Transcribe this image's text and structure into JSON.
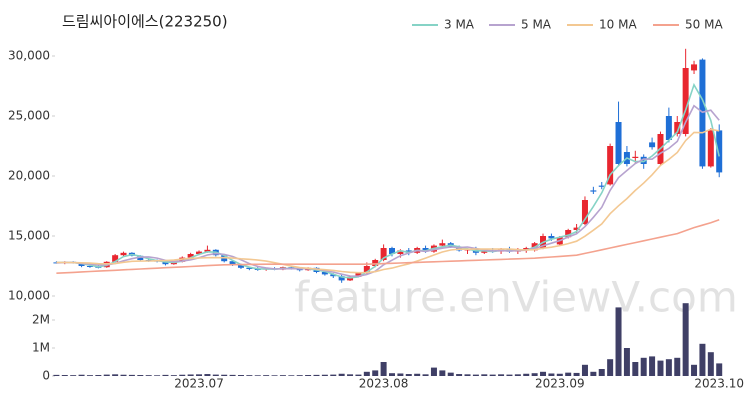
{
  "chart_data": {
    "type": "candlestick",
    "title": "드림씨아이에스(223250)",
    "watermark": "feature.enViewV.com",
    "categories": [
      null,
      null,
      null,
      null,
      null,
      null,
      null,
      null,
      null,
      null,
      null,
      null,
      null,
      null,
      null,
      null,
      null,
      "2023.07",
      null,
      null,
      null,
      null,
      null,
      null,
      null,
      null,
      null,
      null,
      null,
      null,
      null,
      null,
      null,
      null,
      null,
      null,
      null,
      null,
      null,
      "2023.08",
      null,
      null,
      null,
      null,
      null,
      null,
      null,
      null,
      null,
      null,
      null,
      null,
      null,
      null,
      null,
      null,
      null,
      null,
      null,
      null,
      "2023.09",
      null,
      null,
      null,
      null,
      null,
      null,
      null,
      null,
      null,
      null,
      null,
      null,
      null,
      null,
      null,
      null,
      null,
      null,
      "2023.10"
    ],
    "open": [
      12800,
      12750,
      12850,
      12750,
      12500,
      12450,
      12400,
      12850,
      13400,
      13600,
      13350,
      13000,
      12950,
      12900,
      12650,
      12850,
      13200,
      13500,
      13700,
      13850,
      13400,
      12900,
      12600,
      12350,
      12250,
      12200,
      12300,
      12200,
      12400,
      12300,
      12150,
      12350,
      12000,
      11800,
      11650,
      11300,
      11600,
      11900,
      12500,
      13000,
      14000,
      13500,
      13800,
      13600,
      14000,
      13700,
      14200,
      14400,
      14100,
      13800,
      13900,
      13600,
      13800,
      13700,
      13900,
      13700,
      13800,
      13800,
      14000,
      15000,
      14300,
      14900,
      15500,
      16000,
      18800,
      19200,
      19300,
      24500,
      22000,
      21500,
      21600,
      22800,
      21000,
      25000,
      23500,
      23500,
      28800,
      29700,
      20800,
      23800
    ],
    "high": [
      12900,
      12900,
      12900,
      12800,
      12600,
      12550,
      12900,
      13500,
      13700,
      13650,
      13400,
      13100,
      13050,
      13000,
      12900,
      13300,
      13600,
      13800,
      14200,
      13900,
      13450,
      13000,
      12700,
      12450,
      12400,
      12350,
      12400,
      12450,
      12500,
      12400,
      12400,
      12400,
      12100,
      11900,
      11800,
      11700,
      12000,
      12800,
      13100,
      14300,
      14100,
      13900,
      14000,
      14100,
      14200,
      14300,
      14700,
      14500,
      14200,
      14000,
      14100,
      13900,
      14000,
      14000,
      14100,
      14000,
      14100,
      14500,
      15200,
      15200,
      15000,
      15600,
      16000,
      18300,
      19100,
      19500,
      22700,
      26200,
      22500,
      22100,
      21800,
      23200,
      23700,
      25700,
      25000,
      30600,
      29600,
      29800,
      24000,
      24300
    ],
    "low": [
      12700,
      12650,
      12700,
      12400,
      12350,
      12300,
      12350,
      12800,
      13300,
      13300,
      12900,
      12850,
      12800,
      12550,
      12600,
      12800,
      13100,
      13400,
      13600,
      13300,
      12800,
      12500,
      12250,
      12150,
      12100,
      12100,
      12150,
      12150,
      12200,
      12050,
      12100,
      11900,
      11700,
      11500,
      11100,
      11250,
      11550,
      11850,
      12400,
      12900,
      13300,
      13200,
      13400,
      13500,
      13600,
      13600,
      14000,
      14000,
      13700,
      13500,
      13400,
      13500,
      13600,
      13500,
      13600,
      13500,
      13600,
      13700,
      13900,
      14600,
      14200,
      14800,
      15200,
      15900,
      18500,
      18900,
      19200,
      20800,
      20800,
      21000,
      20600,
      22200,
      20900,
      22800,
      23300,
      23300,
      28500,
      20600,
      20700,
      19900
    ],
    "close": [
      12750,
      12850,
      12750,
      12500,
      12450,
      12350,
      12850,
      13400,
      13600,
      13350,
      13000,
      12950,
      12900,
      12650,
      12850,
      13200,
      13500,
      13700,
      13850,
      13400,
      12900,
      12600,
      12350,
      12250,
      12200,
      12300,
      12200,
      12400,
      12300,
      12150,
      12350,
      12000,
      11800,
      11650,
      11300,
      11600,
      11900,
      12500,
      13000,
      14000,
      13500,
      13800,
      13600,
      14000,
      13700,
      14200,
      14400,
      14100,
      13800,
      13900,
      13600,
      13800,
      13700,
      13900,
      13700,
      13800,
      14000,
      14400,
      15000,
      14800,
      14900,
      15500,
      15700,
      18000,
      18700,
      19100,
      22500,
      21000,
      21000,
      21600,
      21000,
      22400,
      23500,
      23000,
      24500,
      29000,
      29300,
      20800,
      23800,
      20300
    ],
    "up_color": "#e8262f",
    "down_color": "#1f6fd6",
    "ylim": [
      10000,
      33000
    ],
    "yticks": [
      {
        "value": 10000,
        "label": "10,000"
      },
      {
        "value": 15000,
        "label": "15,000"
      },
      {
        "value": 20000,
        "label": "20,000"
      },
      {
        "value": 25000,
        "label": "25,000"
      },
      {
        "value": 30000,
        "label": "30,000"
      }
    ],
    "series": [
      {
        "name": "3 MA",
        "color": "#86d3c6",
        "values": [
          12800,
          12800,
          12783,
          12700,
          12567,
          12433,
          12550,
          12867,
          13283,
          13450,
          13317,
          13100,
          12950,
          12833,
          12800,
          12900,
          13183,
          13467,
          13683,
          13650,
          13383,
          12967,
          12617,
          12400,
          12267,
          12250,
          12233,
          12300,
          12300,
          12283,
          12267,
          12167,
          12050,
          11817,
          11583,
          11517,
          11600,
          12000,
          12467,
          13167,
          13500,
          13767,
          13633,
          13800,
          13767,
          13967,
          14100,
          14233,
          14100,
          13933,
          13767,
          13767,
          13700,
          13800,
          13767,
          13800,
          13833,
          14067,
          14467,
          14733,
          14900,
          15067,
          15367,
          16400,
          17467,
          18600,
          20100,
          20867,
          21500,
          21200,
          21200,
          21667,
          22300,
          22967,
          23667,
          25500,
          27600,
          26367,
          24633,
          21633
        ]
      },
      {
        "name": "5 MA",
        "color": "#b7a3cf",
        "values": [
          12750,
          12780,
          12790,
          12720,
          12660,
          12580,
          12580,
          12710,
          12930,
          13110,
          13240,
          13260,
          13160,
          12970,
          12870,
          12910,
          13020,
          13180,
          13420,
          13530,
          13470,
          13290,
          13020,
          12700,
          12460,
          12340,
          12260,
          12270,
          12280,
          12270,
          12280,
          12240,
          12120,
          11990,
          11820,
          11670,
          11650,
          11790,
          12060,
          12600,
          12980,
          13360,
          13580,
          13780,
          13720,
          13860,
          13980,
          14080,
          14040,
          14080,
          13960,
          13840,
          13760,
          13780,
          13740,
          13780,
          13820,
          13960,
          14180,
          14400,
          14620,
          14920,
          15180,
          15780,
          16560,
          17400,
          18800,
          19860,
          20460,
          21040,
          21420,
          21400,
          21900,
          22300,
          22880,
          24480,
          25860,
          25320,
          25480,
          24640
        ]
      },
      {
        "name": "10 MA",
        "color": "#f3c892",
        "values": [
          12800,
          12790,
          12780,
          12770,
          12740,
          12690,
          12680,
          12700,
          12810,
          12890,
          12910,
          12920,
          12935,
          12950,
          12990,
          13075,
          13140,
          13170,
          13195,
          13200,
          13190,
          13155,
          13100,
          13060,
          12995,
          12905,
          12775,
          12645,
          12490,
          12365,
          12310,
          12250,
          12195,
          12135,
          12045,
          11975,
          11945,
          11955,
          12025,
          12210,
          12325,
          12505,
          12685,
          12920,
          13160,
          13420,
          13670,
          13830,
          13910,
          13900,
          13910,
          13910,
          13920,
          13910,
          13910,
          13870,
          13830,
          13860,
          13980,
          14070,
          14200,
          14370,
          14570,
          14980,
          15480,
          16010,
          16860,
          17520,
          18120,
          18800,
          19410,
          20100,
          20880,
          21380,
          21960,
          22950,
          23630,
          23610,
          23890,
          23760
        ]
      },
      {
        "name": "50 MA",
        "color": "#f4a28e",
        "values": [
          11900,
          11935,
          11970,
          12005,
          12040,
          12075,
          12110,
          12145,
          12180,
          12215,
          12250,
          12285,
          12320,
          12355,
          12390,
          12425,
          12460,
          12495,
          12530,
          12565,
          12600,
          12610,
          12620,
          12630,
          12640,
          12650,
          12650,
          12650,
          12650,
          12650,
          12650,
          12650,
          12650,
          12650,
          12650,
          12650,
          12650,
          12650,
          12675,
          12700,
          12725,
          12750,
          12775,
          12800,
          12825,
          12850,
          12875,
          12900,
          12925,
          12950,
          12975,
          13000,
          13025,
          13050,
          13075,
          13100,
          13125,
          13150,
          13200,
          13250,
          13300,
          13350,
          13400,
          13550,
          13700,
          13850,
          14000,
          14150,
          14300,
          14450,
          14600,
          14750,
          14900,
          15050,
          15200,
          15450,
          15700,
          15900,
          16100,
          16350
        ]
      }
    ],
    "legend": "top-right",
    "volume": {
      "color": "#3f3f66",
      "ylim": [
        0,
        2700000
      ],
      "yticks": [
        0,
        {
          "value": 1000000,
          "label": "1M"
        },
        {
          "value": 2000000,
          "label": "2M"
        }
      ],
      "values": [
        40000,
        35000,
        30000,
        45000,
        30000,
        35000,
        50000,
        60000,
        45000,
        40000,
        35000,
        30000,
        25000,
        40000,
        30000,
        45000,
        55000,
        60000,
        70000,
        50000,
        45000,
        40000,
        35000,
        30000,
        25000,
        30000,
        25000,
        30000,
        25000,
        30000,
        35000,
        40000,
        45000,
        50000,
        80000,
        60000,
        50000,
        150000,
        200000,
        500000,
        100000,
        90000,
        70000,
        80000,
        60000,
        300000,
        200000,
        120000,
        70000,
        60000,
        50000,
        60000,
        50000,
        60000,
        50000,
        60000,
        80000,
        100000,
        150000,
        90000,
        80000,
        120000,
        110000,
        400000,
        150000,
        250000,
        600000,
        2450000,
        1000000,
        500000,
        650000,
        700000,
        550000,
        600000,
        650000,
        2600000,
        400000,
        1150000,
        850000,
        450000
      ]
    }
  }
}
